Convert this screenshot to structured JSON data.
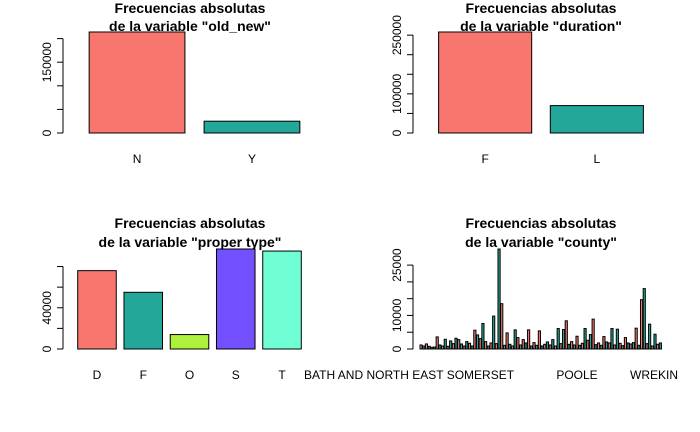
{
  "colors": {
    "salmon": "#F8766D",
    "teal": "#22A798",
    "lime": "#ADF23A",
    "purple": "#7350FF",
    "aquamarine": "#70FFD4"
  },
  "chart_data": [
    {
      "type": "bar",
      "title": [
        "Frecuencias absolutas",
        "de la variable \"old_new\""
      ],
      "categories": [
        "N",
        "Y"
      ],
      "values": [
        214000,
        25000
      ],
      "colors": [
        "#F8766D",
        "#22A798"
      ],
      "yticks": [
        0,
        150000
      ],
      "yminor": [
        50000,
        100000,
        200000
      ],
      "ylim": [
        0,
        214000
      ]
    },
    {
      "type": "bar",
      "title": [
        "Frecuencias absolutas",
        "de la variable \"duration\""
      ],
      "categories": [
        "F",
        "L"
      ],
      "values": [
        258000,
        70000
      ],
      "colors": [
        "#F8766D",
        "#22A798"
      ],
      "yticks": [
        0,
        100000,
        250000
      ],
      "yminor": [
        50000,
        150000,
        200000
      ],
      "ylim": [
        0,
        258000
      ]
    },
    {
      "type": "bar",
      "title": [
        "Frecuencias absolutas",
        "de la variable \"proper type\""
      ],
      "categories": [
        "D",
        "F",
        "O",
        "S",
        "T"
      ],
      "values": [
        76000,
        55000,
        14000,
        97000,
        95000
      ],
      "colors": [
        "#F8766D",
        "#22A798",
        "#ADF23A",
        "#7350FF",
        "#70FFD4"
      ],
      "yticks": [
        0,
        40000
      ],
      "yminor": [
        20000,
        60000,
        80000
      ],
      "ylim": [
        0,
        97000
      ]
    },
    {
      "type": "bar",
      "title": [
        "Frecuencias absolutas",
        "de la variable \"county\""
      ],
      "category_labels": [
        "BATH AND NORTH EAST SOMERSET",
        "POOLE",
        "WREKIN"
      ],
      "label_positions": [
        0,
        0.57,
        1
      ],
      "values": [
        1200,
        900,
        1500,
        800,
        500,
        600,
        3600,
        1200,
        900,
        2900,
        800,
        2400,
        1600,
        3200,
        2800,
        1500,
        900,
        2200,
        1700,
        900,
        5600,
        4200,
        3100,
        7600,
        2200,
        900,
        1800,
        9800,
        1600,
        29800,
        13500,
        1100,
        4800,
        1400,
        900,
        5700,
        3400,
        1200,
        2800,
        1800,
        5700,
        900,
        1900,
        1100,
        5400,
        900,
        1400,
        2100,
        1200,
        2800,
        900,
        6100,
        1600,
        5800,
        8400,
        1400,
        2200,
        1200,
        3800,
        1100,
        1700,
        6100,
        2600,
        4300,
        8900,
        1300,
        1800,
        1100,
        3700,
        2100,
        1800,
        6100,
        1200,
        5900,
        1700,
        1000,
        3400,
        1800,
        1500,
        1900,
        6200,
        1100,
        14700,
        18000,
        1600,
        7400,
        900,
        4400,
        1400,
        1800
      ],
      "colors": [
        "#F8766D",
        "#22A798"
      ],
      "yticks": [
        0,
        10000,
        25000
      ],
      "yminor": [
        5000,
        15000,
        20000
      ],
      "ylim": [
        0,
        29800
      ]
    }
  ]
}
